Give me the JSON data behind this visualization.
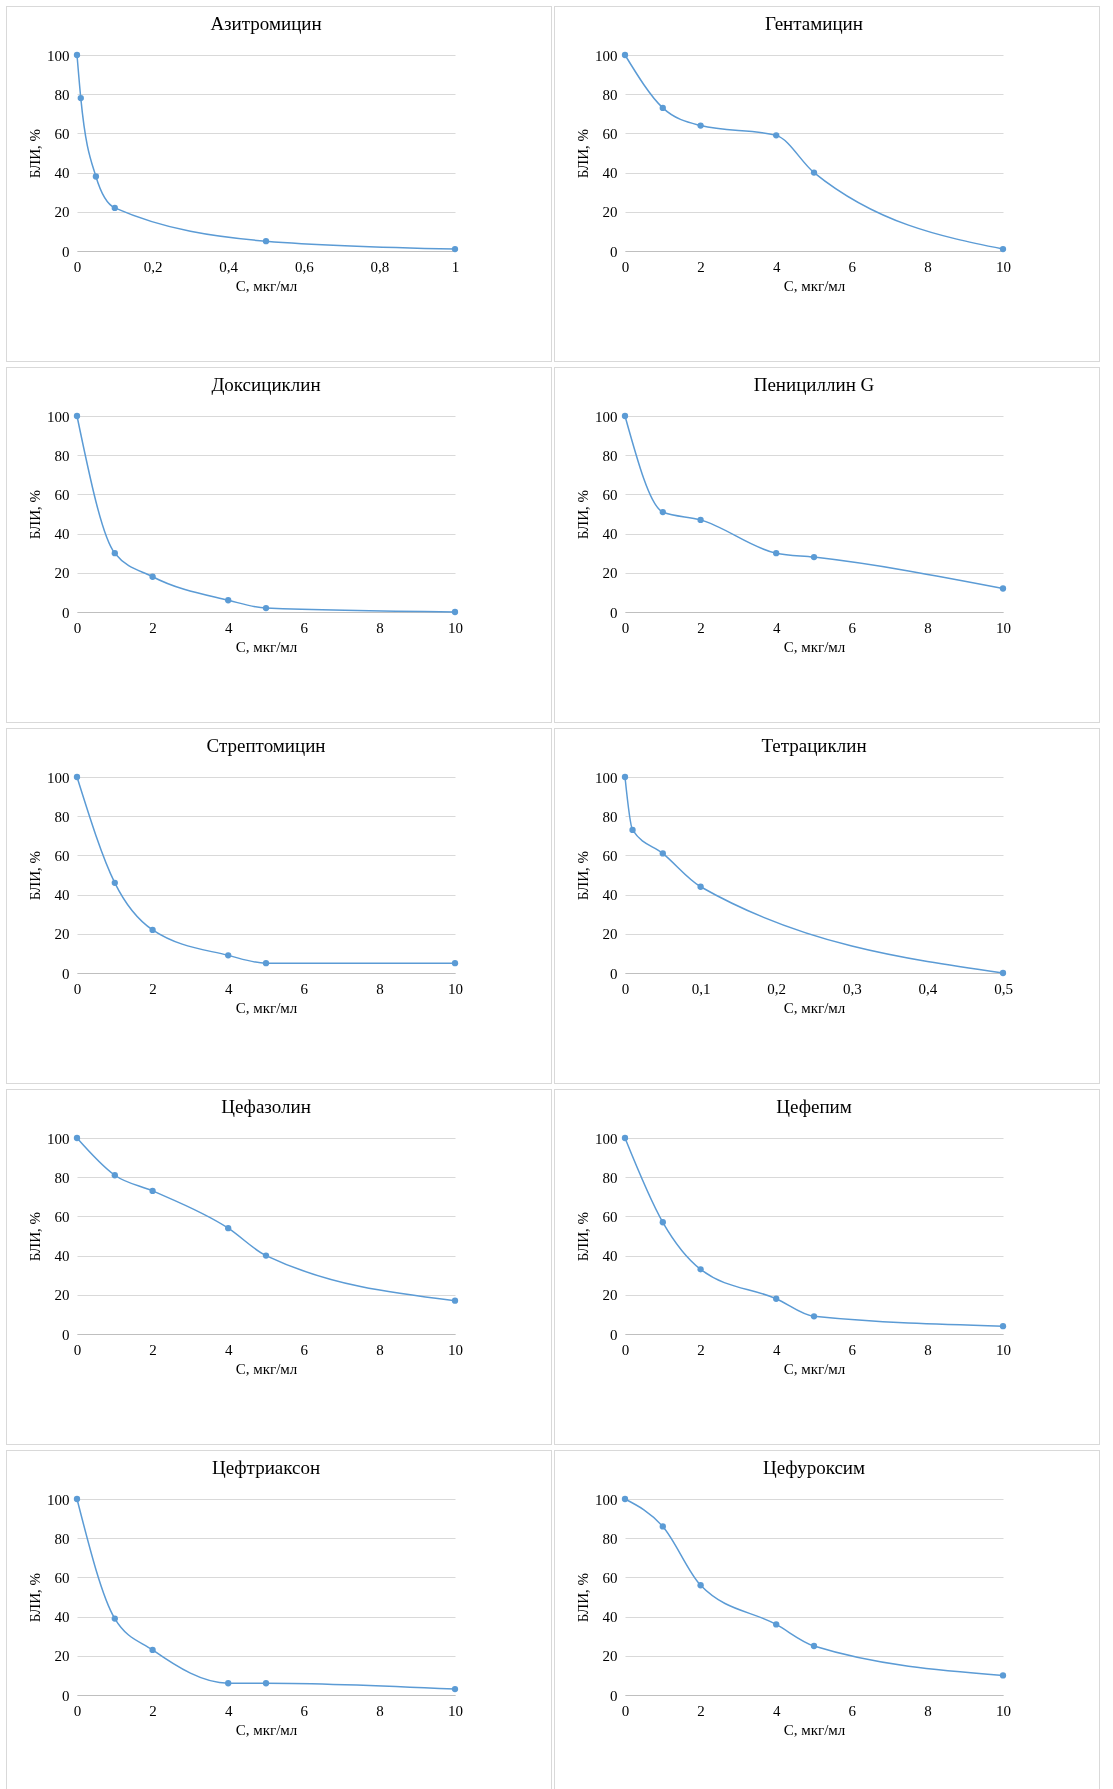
{
  "chart_data": [
    {
      "type": "line",
      "title": "Азитромицин",
      "xlabel": "С, мкг/мл",
      "ylabel": "БЛИ, %",
      "x": [
        0,
        0.01,
        0.05,
        0.1,
        0.5,
        1
      ],
      "series": [
        {
          "color": "#5b9bd5",
          "values": [
            100,
            78,
            38,
            22,
            5,
            1
          ]
        }
      ],
      "xlim": [
        0,
        1
      ],
      "xticks": [
        0,
        {
          "value": 0.2,
          "label": "0,2"
        },
        {
          "value": 0.4,
          "label": "0,4"
        },
        {
          "value": 0.6,
          "label": "0,6"
        },
        {
          "value": 0.8,
          "label": "0,8"
        },
        1
      ],
      "ylim": [
        0,
        100
      ],
      "yticks": [
        0,
        20,
        40,
        60,
        80,
        100
      ],
      "grid": "y",
      "marker": "circle"
    },
    {
      "type": "line",
      "title": "Гентамицин",
      "xlabel": "С, мкг/мл",
      "ylabel": "БЛИ, %",
      "x": [
        0,
        1,
        2,
        4,
        5,
        10
      ],
      "series": [
        {
          "color": "#5b9bd5",
          "values": [
            100,
            73,
            64,
            59,
            40,
            1
          ]
        }
      ],
      "xlim": [
        0,
        10
      ],
      "xticks": [
        0,
        2,
        4,
        6,
        8,
        10
      ],
      "ylim": [
        0,
        100
      ],
      "yticks": [
        0,
        20,
        40,
        60,
        80,
        100
      ],
      "grid": "y",
      "marker": "circle"
    },
    {
      "type": "line",
      "title": "Доксициклин",
      "xlabel": "С, мкг/мл",
      "ylabel": "БЛИ, %",
      "x": [
        0,
        1,
        2,
        4,
        5,
        10
      ],
      "series": [
        {
          "color": "#5b9bd5",
          "values": [
            100,
            30,
            18,
            6,
            2,
            0
          ]
        }
      ],
      "xlim": [
        0,
        10
      ],
      "xticks": [
        0,
        2,
        4,
        6,
        8,
        10
      ],
      "ylim": [
        0,
        100
      ],
      "yticks": [
        0,
        20,
        40,
        60,
        80,
        100
      ],
      "grid": "y",
      "marker": "circle"
    },
    {
      "type": "line",
      "title": "Пенициллин G",
      "xlabel": "С, мкг/мл",
      "ylabel": "БЛИ, %",
      "x": [
        0,
        1,
        2,
        4,
        5,
        10
      ],
      "series": [
        {
          "color": "#5b9bd5",
          "values": [
            100,
            51,
            47,
            30,
            28,
            12
          ]
        }
      ],
      "xlim": [
        0,
        10
      ],
      "xticks": [
        0,
        2,
        4,
        6,
        8,
        10
      ],
      "ylim": [
        0,
        100
      ],
      "yticks": [
        0,
        20,
        40,
        60,
        80,
        100
      ],
      "grid": "y",
      "marker": "circle"
    },
    {
      "type": "line",
      "title": "Стрептомицин",
      "xlabel": "С, мкг/мл",
      "ylabel": "БЛИ, %",
      "x": [
        0,
        1,
        2,
        4,
        5,
        10
      ],
      "series": [
        {
          "color": "#5b9bd5",
          "values": [
            100,
            46,
            22,
            9,
            5,
            5
          ]
        }
      ],
      "xlim": [
        0,
        10
      ],
      "xticks": [
        0,
        2,
        4,
        6,
        8,
        10
      ],
      "ylim": [
        0,
        100
      ],
      "yticks": [
        0,
        20,
        40,
        60,
        80,
        100
      ],
      "grid": "y",
      "marker": "circle"
    },
    {
      "type": "line",
      "title": "Тетрациклин",
      "xlabel": "С, мкг/мл",
      "ylabel": "БЛИ, %",
      "x": [
        0,
        0.01,
        0.05,
        0.1,
        0.5
      ],
      "series": [
        {
          "color": "#5b9bd5",
          "values": [
            100,
            73,
            61,
            44,
            0
          ]
        }
      ],
      "xlim": [
        0,
        0.5
      ],
      "xticks": [
        0,
        {
          "value": 0.1,
          "label": "0,1"
        },
        {
          "value": 0.2,
          "label": "0,2"
        },
        {
          "value": 0.3,
          "label": "0,3"
        },
        {
          "value": 0.4,
          "label": "0,4"
        },
        {
          "value": 0.5,
          "label": "0,5"
        }
      ],
      "ylim": [
        0,
        100
      ],
      "yticks": [
        0,
        20,
        40,
        60,
        80,
        100
      ],
      "grid": "y",
      "marker": "circle"
    },
    {
      "type": "line",
      "title": "Цефазолин",
      "xlabel": "С, мкг/мл",
      "ylabel": "БЛИ, %",
      "x": [
        0,
        1,
        2,
        4,
        5,
        10
      ],
      "series": [
        {
          "color": "#5b9bd5",
          "values": [
            100,
            81,
            73,
            54,
            40,
            17
          ]
        }
      ],
      "xlim": [
        0,
        10
      ],
      "xticks": [
        0,
        2,
        4,
        6,
        8,
        10
      ],
      "ylim": [
        0,
        100
      ],
      "yticks": [
        0,
        20,
        40,
        60,
        80,
        100
      ],
      "grid": "y",
      "marker": "circle"
    },
    {
      "type": "line",
      "title": "Цефепим",
      "xlabel": "С, мкг/мл",
      "ylabel": "БЛИ, %",
      "x": [
        0,
        1,
        2,
        4,
        5,
        10
      ],
      "series": [
        {
          "color": "#5b9bd5",
          "values": [
            100,
            57,
            33,
            18,
            9,
            4
          ]
        }
      ],
      "xlim": [
        0,
        10
      ],
      "xticks": [
        0,
        2,
        4,
        6,
        8,
        10
      ],
      "ylim": [
        0,
        100
      ],
      "yticks": [
        0,
        20,
        40,
        60,
        80,
        100
      ],
      "grid": "y",
      "marker": "circle"
    },
    {
      "type": "line",
      "title": "Цефтриаксон",
      "xlabel": "С, мкг/мл",
      "ylabel": "БЛИ, %",
      "x": [
        0,
        1,
        2,
        4,
        5,
        10
      ],
      "series": [
        {
          "color": "#5b9bd5",
          "values": [
            100,
            39,
            23,
            6,
            6,
            3
          ]
        }
      ],
      "xlim": [
        0,
        10
      ],
      "xticks": [
        0,
        2,
        4,
        6,
        8,
        10
      ],
      "ylim": [
        0,
        100
      ],
      "yticks": [
        0,
        20,
        40,
        60,
        80,
        100
      ],
      "grid": "y",
      "marker": "circle"
    },
    {
      "type": "line",
      "title": "Цефуроксим",
      "xlabel": "С, мкг/мл",
      "ylabel": "БЛИ, %",
      "x": [
        0,
        1,
        2,
        4,
        5,
        10
      ],
      "series": [
        {
          "color": "#5b9bd5",
          "values": [
            100,
            86,
            56,
            36,
            25,
            10
          ]
        }
      ],
      "xlim": [
        0,
        10
      ],
      "xticks": [
        0,
        2,
        4,
        6,
        8,
        10
      ],
      "ylim": [
        0,
        100
      ],
      "yticks": [
        0,
        20,
        40,
        60,
        80,
        100
      ],
      "grid": "y",
      "marker": "circle"
    }
  ]
}
